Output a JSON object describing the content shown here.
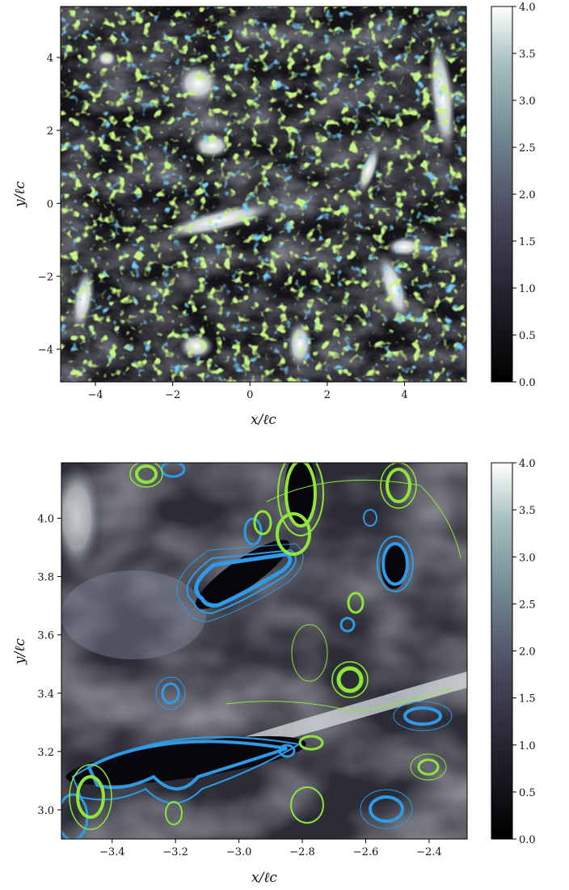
{
  "chart_data": [
    {
      "type": "heatmap",
      "panel": "top",
      "title": "",
      "xlabel": "x/ℓc",
      "ylabel": "y/ℓc",
      "xlim": [
        -4.9,
        5.6
      ],
      "ylim": [
        -4.9,
        5.4
      ],
      "xticks": [
        -4,
        -2,
        0,
        2,
        4
      ],
      "xtick_labels": [
        "−4",
        "−2",
        "0",
        "2",
        "4"
      ],
      "yticks": [
        -4,
        -2,
        0,
        2,
        4
      ],
      "ytick_labels": [
        "−4",
        "−2",
        "0",
        "2",
        "4"
      ],
      "colormap": "bone",
      "colorbar": {
        "range": [
          0.0,
          4.0
        ],
        "ticks": [
          0.0,
          0.5,
          1.0,
          1.5,
          2.0,
          2.5,
          3.0,
          3.5,
          4.0
        ],
        "tick_labels": [
          "0.0",
          "0.5",
          "1.0",
          "1.5",
          "2.0",
          "2.5",
          "3.0",
          "3.5",
          "4.0"
        ]
      },
      "contour_colors": [
        "#2f9ae8",
        "#8ee63a"
      ]
    },
    {
      "type": "heatmap",
      "panel": "bottom",
      "title": "",
      "xlabel": "x/ℓc",
      "ylabel": "y/ℓc",
      "xlim": [
        -3.56,
        -2.28
      ],
      "ylim": [
        2.9,
        4.19
      ],
      "xticks": [
        -3.4,
        -3.2,
        -3.0,
        -2.8,
        -2.6,
        -2.4
      ],
      "xtick_labels": [
        "−3.4",
        "−3.2",
        "−3.0",
        "−2.8",
        "−2.6",
        "−2.4"
      ],
      "yticks": [
        3.0,
        3.2,
        3.4,
        3.6,
        3.8,
        4.0
      ],
      "ytick_labels": [
        "3.0",
        "3.2",
        "3.4",
        "3.6",
        "3.8",
        "4.0"
      ],
      "colormap": "bone",
      "colorbar": {
        "range": [
          0.0,
          4.0
        ],
        "ticks": [
          0.0,
          0.5,
          1.0,
          1.5,
          2.0,
          2.5,
          3.0,
          3.5,
          4.0
        ],
        "tick_labels": [
          "0.0",
          "0.5",
          "1.0",
          "1.5",
          "2.0",
          "2.5",
          "3.0",
          "3.5",
          "4.0"
        ]
      },
      "contour_colors": [
        "#2f9ae8",
        "#8ee63a"
      ]
    }
  ]
}
